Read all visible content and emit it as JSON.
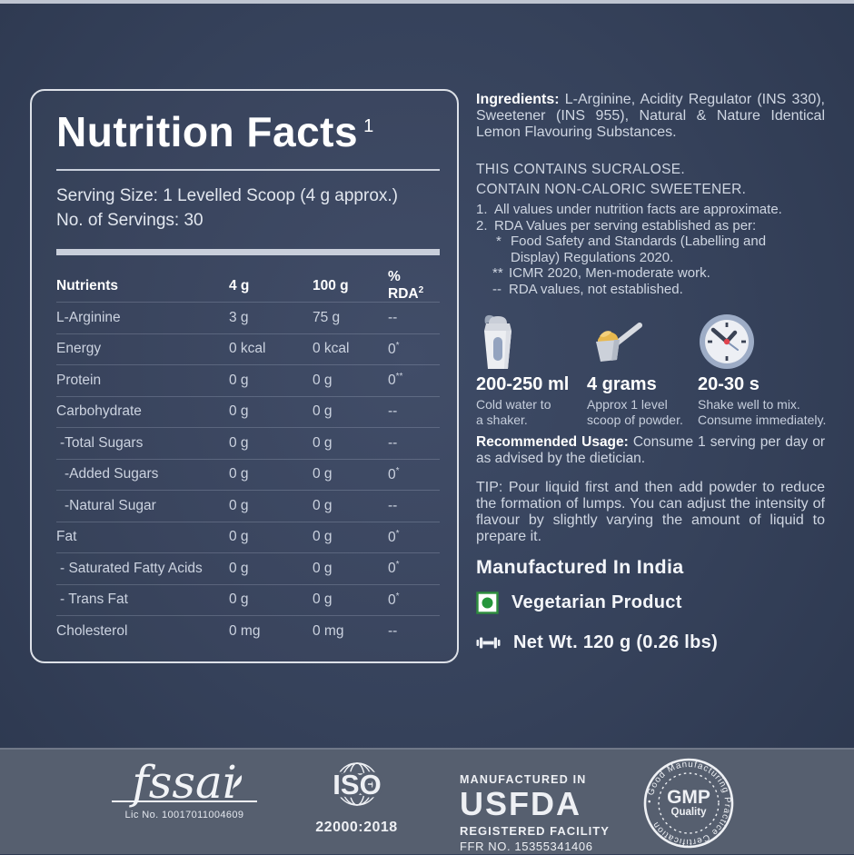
{
  "panel": {
    "title": "Nutrition Facts",
    "title_sup": "1",
    "serving_size": "Serving Size: 1 Levelled Scoop (4 g approx.)",
    "servings_count": "No. of Servings: 30"
  },
  "table": {
    "headers": {
      "nutrients": "Nutrients",
      "per_serving": "4 g",
      "per_100g": "100 g",
      "rda": "% RDA",
      "rda_sup": "2"
    },
    "rows": [
      {
        "name": "L-Arginine",
        "per_serving": "3 g",
        "per_100g": "75 g",
        "rda": "--",
        "rda_sup": "",
        "indent": 0
      },
      {
        "name": "Energy",
        "per_serving": "0 kcal",
        "per_100g": "0 kcal",
        "rda": "0",
        "rda_sup": "*",
        "indent": 0
      },
      {
        "name": "Protein",
        "per_serving": "0 g",
        "per_100g": "0 g",
        "rda": "0",
        "rda_sup": "**",
        "indent": 0
      },
      {
        "name": "Carbohydrate",
        "per_serving": "0 g",
        "per_100g": "0 g",
        "rda": "--",
        "rda_sup": "",
        "indent": 0
      },
      {
        "name": "-Total Sugars",
        "per_serving": "0 g",
        "per_100g": "0 g",
        "rda": "--",
        "rda_sup": "",
        "indent": 1
      },
      {
        "name": "-Added Sugars",
        "per_serving": "0 g",
        "per_100g": "0 g",
        "rda": "0",
        "rda_sup": "*",
        "indent": 2
      },
      {
        "name": "-Natural Sugar",
        "per_serving": "0 g",
        "per_100g": "0 g",
        "rda": "--",
        "rda_sup": "",
        "indent": 2
      },
      {
        "name": "Fat",
        "per_serving": "0 g",
        "per_100g": "0 g",
        "rda": "0",
        "rda_sup": "*",
        "indent": 0
      },
      {
        "name": "- Saturated Fatty Acids",
        "per_serving": "0 g",
        "per_100g": "0 g",
        "rda": "0",
        "rda_sup": "*",
        "indent": 1
      },
      {
        "name": "- Trans Fat",
        "per_serving": "0 g",
        "per_100g": "0 g",
        "rda": "0",
        "rda_sup": "*",
        "indent": 1
      },
      {
        "name": "Cholesterol",
        "per_serving": "0 mg",
        "per_100g": "0 mg",
        "rda": "--",
        "rda_sup": "",
        "indent": 0
      }
    ]
  },
  "right": {
    "ingredients_label": "Ingredients:",
    "ingredients_text": " L-Arginine, Acidity Regulator (INS 330), Sweetener (INS 955), Natural & Nature Identical Lemon Flavouring Substances.",
    "contains_line1": "THIS CONTAINS SUCRALOSE.",
    "contains_line2": "CONTAIN NON-CALORIC SWEETENER.",
    "notes": {
      "n1_num": "1.",
      "n1": "All values under nutrition facts  are approximate.",
      "n2_num": "2.",
      "n2": "RDA Values per serving established as per:",
      "s1_marker": "*",
      "s1": "Food Safety and Standards (Labelling and Display) Regulations 2020.",
      "s2_marker": "**",
      "s2": "ICMR 2020, Men-moderate work.",
      "s3_marker": "--",
      "s3": "RDA values, not established."
    },
    "usage_steps": [
      {
        "icon": "shaker-icon",
        "value": "200-250 ml",
        "desc": "Cold water to\na shaker."
      },
      {
        "icon": "scoop-icon",
        "value": "4 grams",
        "desc": "Approx 1 level\nscoop of powder."
      },
      {
        "icon": "clock-icon",
        "value": "20-30 s",
        "desc": "Shake well to mix.\nConsume immediately."
      }
    ],
    "recommended_label": "Recommended Usage:",
    "recommended_text": " Consume 1 serving per day or as advised by the dietician.",
    "tip_text": "TIP: Pour liquid first and then add powder to reduce the formation of lumps. You can adjust the intensity of flavour by slightly varying the amount of liquid to prepare it.",
    "made_in": "Manufactured In India",
    "veg_label": "Vegetarian Product",
    "net_wt": "Net Wt. 120 g (0.26 lbs)"
  },
  "footer": {
    "fssai": {
      "word": "fssai",
      "lic": "Lic No. 10017011004609"
    },
    "iso": {
      "name": "ISO",
      "standard": "22000:2018"
    },
    "usfda": {
      "line1": "MANUFACTURED IN",
      "name": "USFDA",
      "line2": "REGISTERED FACILITY",
      "line3": "FFR NO. 15355341406"
    },
    "gmp": {
      "ring": "• Good Manufacturing Practice Certification",
      "center": "GMP",
      "sub": "Quality"
    }
  },
  "colors": {
    "background_navy": "#36425b",
    "panel_border": "#dde1e8",
    "footer_slate": "#565f6f",
    "veg_green": "#2e8f3e",
    "powder_yellow": "#e8b84e",
    "clock_red": "#e0434d"
  }
}
